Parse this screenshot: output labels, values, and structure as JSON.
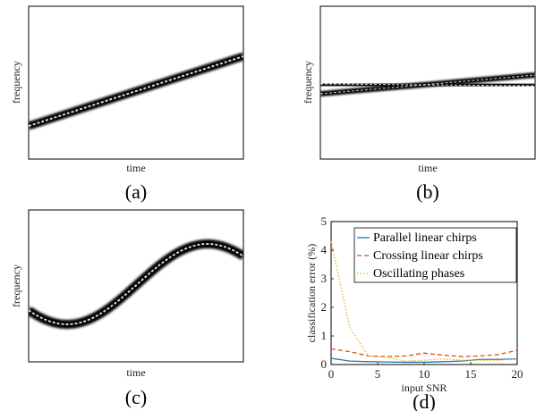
{
  "panels": [
    {
      "caption": "(a)",
      "xlabel": "time",
      "ylabel": "frequency"
    },
    {
      "caption": "(b)",
      "xlabel": "time",
      "ylabel": "frequency"
    },
    {
      "caption": "(c)",
      "xlabel": "time",
      "ylabel": "frequency"
    },
    {
      "caption": "(d)"
    }
  ],
  "chart_data": {
    "type": "line",
    "xlabel": "input SNR",
    "ylabel": "classification error (%)",
    "xlim": [
      0,
      20
    ],
    "ylim": [
      0,
      5
    ],
    "xticks": [
      0,
      5,
      10,
      15,
      20
    ],
    "yticks": [
      0,
      1,
      2,
      3,
      4,
      5
    ],
    "grid": false,
    "legend_position": "top-right",
    "series": [
      {
        "name": "Parallel linear chirps",
        "color": "#1f77b4",
        "dash": "solid",
        "x": [
          0,
          2,
          4,
          6,
          8,
          10,
          12,
          14,
          16,
          18,
          20
        ],
        "y": [
          0.22,
          0.12,
          0.1,
          0.09,
          0.08,
          0.08,
          0.1,
          0.12,
          0.18,
          0.18,
          0.2
        ]
      },
      {
        "name": "Crossing linear chirps",
        "color": "#d95319",
        "dash": "dashed",
        "x": [
          0,
          2,
          4,
          6,
          8,
          10,
          12,
          14,
          16,
          18,
          20
        ],
        "y": [
          0.55,
          0.45,
          0.3,
          0.28,
          0.3,
          0.4,
          0.33,
          0.28,
          0.3,
          0.35,
          0.5
        ]
      },
      {
        "name": "Oscillating phases",
        "color": "#edb120",
        "dash": "dotted",
        "x": [
          0,
          2,
          4,
          6,
          8,
          10,
          12,
          14,
          16,
          18,
          20
        ],
        "y": [
          4.3,
          1.3,
          0.3,
          0.25,
          0.12,
          0.15,
          0.2,
          0.15,
          0.15,
          0.15,
          0.2
        ]
      }
    ]
  }
}
